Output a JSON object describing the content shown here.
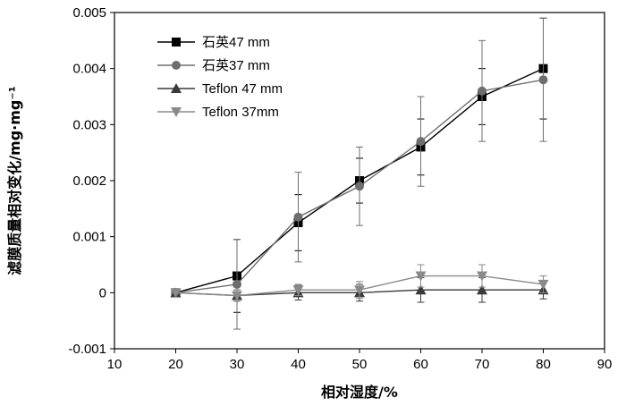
{
  "chart_data": {
    "type": "line",
    "title": "",
    "xlabel": "相对湿度/%",
    "ylabel": "滤膜质量相对变化/mg·mg⁻¹",
    "xlim": [
      10,
      90
    ],
    "ylim": [
      -0.001,
      0.005
    ],
    "x_ticks": [
      10,
      20,
      30,
      40,
      50,
      60,
      70,
      80,
      90
    ],
    "x_tick_labels": [
      "10",
      "20",
      "30",
      "40",
      "50",
      "60",
      "70",
      "80",
      "90"
    ],
    "y_ticks": [
      -0.001,
      0,
      0.001,
      0.002,
      0.003,
      0.004,
      0.005
    ],
    "y_tick_labels": [
      "-0.001",
      "0",
      "0.001",
      "0.002",
      "0.003",
      "0.004",
      "0.005"
    ],
    "grid": false,
    "legend_position": "top-left",
    "x": [
      20,
      30,
      40,
      50,
      60,
      70,
      80
    ],
    "series": [
      {
        "name": "石英47 mm",
        "marker": "square",
        "color": "#000000",
        "values": [
          0.0,
          0.0003,
          0.00125,
          0.002,
          0.0026,
          0.0035,
          0.004
        ],
        "error": [
          0.0,
          0.00065,
          0.0005,
          0.0004,
          0.0005,
          0.0005,
          0.0009
        ]
      },
      {
        "name": "石英37 mm",
        "marker": "circle",
        "color": "#6e6e6e",
        "values": [
          0.0,
          0.00015,
          0.00135,
          0.0019,
          0.0027,
          0.0036,
          0.0038
        ],
        "error": [
          0.0,
          0.0008,
          0.0008,
          0.0007,
          0.0008,
          0.0009,
          0.0011
        ]
      },
      {
        "name": "Teflon 47 mm",
        "marker": "triangle-up",
        "color": "#3a3a3a",
        "values": [
          0.0,
          -5e-05,
          0.0,
          0.0,
          5e-05,
          5e-05,
          5e-05
        ],
        "error": [
          0.0,
          0.0001,
          0.00013,
          0.00015,
          0.00022,
          0.00022,
          0.00016
        ]
      },
      {
        "name": "Teflon 37mm",
        "marker": "triangle-down",
        "color": "#8a8a8a",
        "values": [
          0.0,
          -5e-05,
          5e-05,
          5e-05,
          0.0003,
          0.0003,
          0.00015
        ],
        "error": [
          0.0,
          0.0001,
          0.0001,
          0.00015,
          0.0002,
          0.0002,
          0.00015
        ]
      }
    ]
  }
}
